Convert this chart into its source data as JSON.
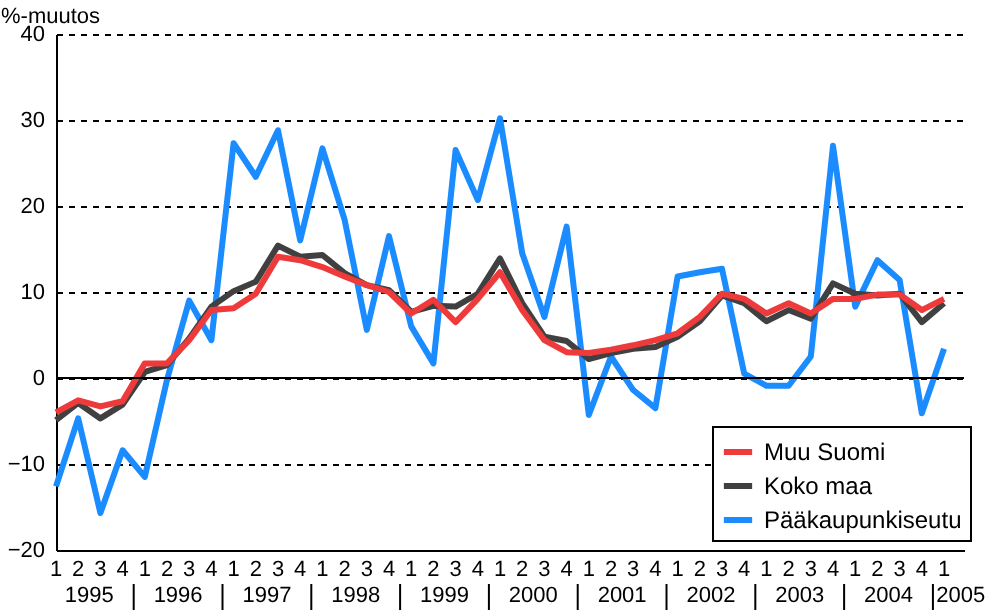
{
  "chart_data": {
    "type": "line",
    "ylabel": "%-muutos",
    "categories": [
      "1",
      "2",
      "3",
      "4",
      "1",
      "2",
      "3",
      "4",
      "1",
      "2",
      "3",
      "4",
      "1",
      "2",
      "3",
      "4",
      "1",
      "2",
      "3",
      "4",
      "1",
      "2",
      "3",
      "4",
      "1",
      "2",
      "3",
      "4",
      "1",
      "2",
      "3",
      "4",
      "1",
      "2",
      "3",
      "4",
      "1",
      "2",
      "3",
      "4",
      "1"
    ],
    "annotations": [
      "1995",
      "1996",
      "1997",
      "1998",
      "1999",
      "2000",
      "2001",
      "2002",
      "2003",
      "2004",
      "2005"
    ],
    "series": [
      {
        "name": "Muu Suomi",
        "color": "#ee3a3a",
        "values": [
          -4,
          -2.6,
          -3.3,
          -2.7,
          1.7,
          1.7,
          4.4,
          7.9,
          8.1,
          9.8,
          14.1,
          13.7,
          12.9,
          11.8,
          10.8,
          10,
          7.5,
          9.1,
          6.5,
          9.2,
          12.3,
          7.9,
          4.4,
          3,
          2.9,
          3.3,
          3.8,
          4.4,
          5.2,
          7.1,
          9.8,
          9.2,
          7.5,
          8.7,
          7.5,
          9.2,
          9.2,
          9.7,
          9.7,
          7.9,
          9.2
        ]
      },
      {
        "name": "Koko maa",
        "color": "#404040",
        "values": [
          -4.9,
          -2.9,
          -4.7,
          -3.1,
          0.7,
          1.5,
          4.6,
          8.3,
          10.1,
          11.2,
          15.4,
          14.1,
          14.3,
          12.2,
          10.8,
          10.2,
          7.7,
          8.4,
          8.3,
          9.8,
          13.9,
          8.7,
          4.8,
          4.3,
          2.2,
          2.9,
          3.4,
          3.6,
          4.8,
          6.6,
          9.6,
          8.7,
          6.6,
          7.9,
          6.9,
          11,
          9.8,
          9.6,
          9.8,
          6.5,
          8.7
        ]
      },
      {
        "name": "Pääkaupunkiseutu",
        "color": "#1a8cff",
        "values": [
          -12.6,
          -4.7,
          -15.7,
          -8.4,
          -11.5,
          -0.2,
          9,
          4.4,
          27.3,
          23.4,
          28.8,
          16,
          26.7,
          18.4,
          5.6,
          16.5,
          6,
          1.7,
          26.5,
          20.7,
          30.2,
          14.5,
          7.1,
          17.6,
          -4.3,
          2.5,
          -1.4,
          -3.5,
          11.8,
          12.3,
          12.7,
          0.5,
          -0.9,
          -0.9,
          2.5,
          27,
          8.3,
          13.7,
          11.4,
          -4.1,
          3.4
        ]
      }
    ],
    "ylim": [
      -20,
      40
    ],
    "yticks": [
      -20,
      -10,
      0,
      10,
      20,
      30,
      40
    ],
    "grid": "y",
    "legend": "bottom right",
    "line_style": "solid",
    "marker": "none",
    "ref_lines": [
      {
        "axis": "y",
        "value": 0
      }
    ]
  }
}
